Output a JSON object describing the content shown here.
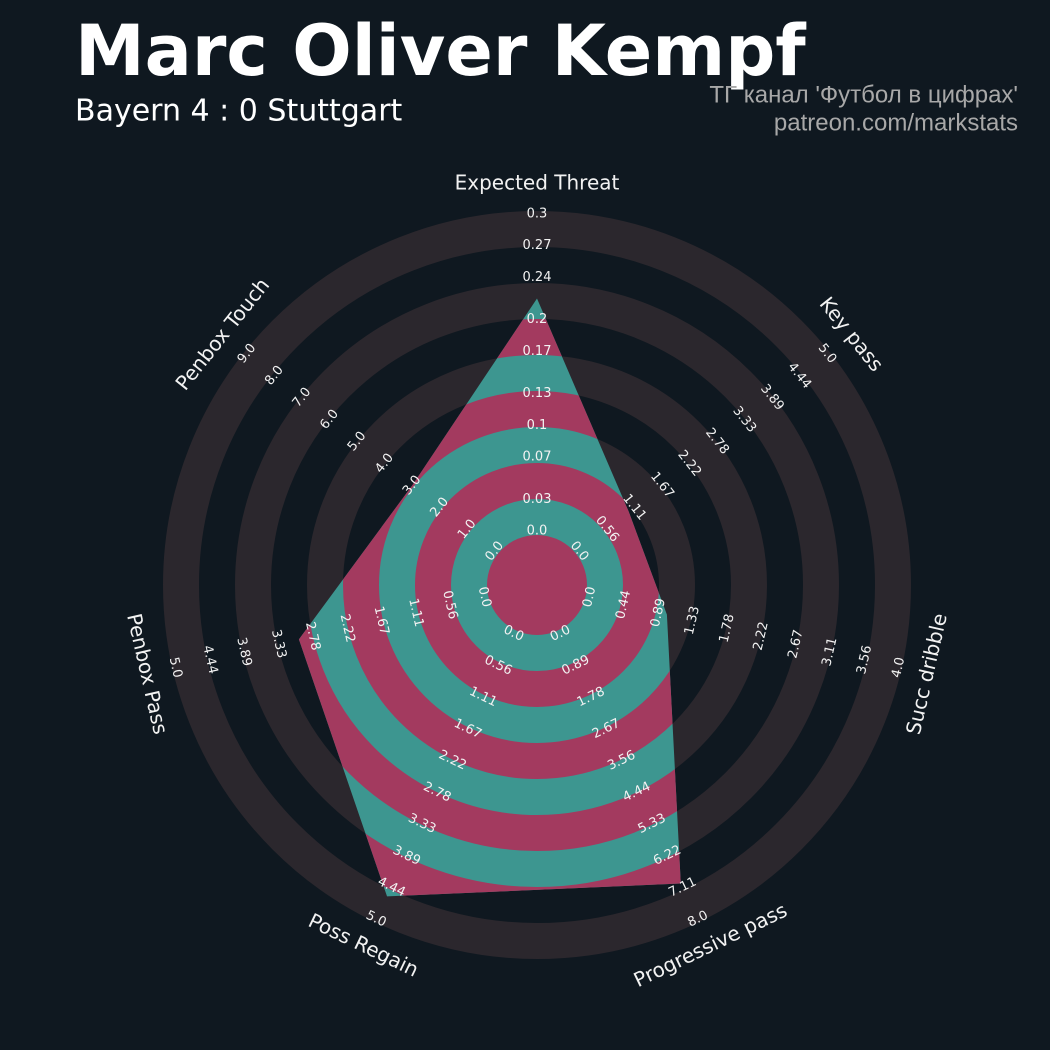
{
  "chart_data": {
    "type": "radar",
    "title": "Marc Oliver Kempf",
    "subtitle": "Bayern 4 : 0 Stuttgart",
    "annotations": [
      "ТГ канал 'Футбол в цифрах'",
      "patreon.com/markstats"
    ],
    "categories": [
      "Expected Threat",
      "Key pass",
      "Succ dribble",
      "Progressive pass",
      "Poss Regain",
      "Penbox Pass",
      "Penbox Touch"
    ],
    "values": [
      0.22,
      1.0,
      1.0,
      7.0,
      4.6,
      3.0,
      3.0
    ],
    "axis_ranges": [
      [
        0,
        0.3
      ],
      [
        0,
        5
      ],
      [
        0,
        4
      ],
      [
        0,
        8
      ],
      [
        0,
        5
      ],
      [
        0,
        5
      ],
      [
        0,
        9
      ]
    ],
    "axis_ticks": [
      [
        {
          "value": 0,
          "label": "0.0"
        },
        0.03,
        0.07,
        0.1,
        0.13,
        0.17,
        0.2,
        0.24,
        0.27,
        0.3
      ],
      [
        {
          "value": 0,
          "label": "0.0"
        },
        0.56,
        1.11,
        1.67,
        2.22,
        2.78,
        3.33,
        3.89,
        4.44,
        {
          "value": 5,
          "label": "5.0"
        }
      ],
      [
        {
          "value": 0,
          "label": "0.0"
        },
        0.44,
        0.89,
        1.33,
        1.78,
        2.22,
        2.67,
        3.11,
        3.56,
        {
          "value": 4,
          "label": "4.0"
        }
      ],
      [
        {
          "value": 0,
          "label": "0.0"
        },
        0.89,
        1.78,
        2.67,
        3.56,
        4.44,
        5.33,
        6.22,
        7.11,
        {
          "value": 8,
          "label": "8.0"
        }
      ],
      [
        {
          "value": 0,
          "label": "0.0"
        },
        0.56,
        1.11,
        1.67,
        2.22,
        2.78,
        3.33,
        3.89,
        4.44,
        {
          "value": 5,
          "label": "5.0"
        }
      ],
      [
        {
          "value": 0,
          "label": "0.0"
        },
        0.56,
        1.11,
        1.67,
        2.22,
        2.78,
        3.33,
        3.89,
        4.44,
        {
          "value": 5,
          "label": "5.0"
        }
      ],
      [
        {
          "value": 0,
          "label": "0.0"
        },
        {
          "value": 1,
          "label": "1.0"
        },
        {
          "value": 2,
          "label": "2.0"
        },
        {
          "value": 3,
          "label": "3.0"
        },
        {
          "value": 4,
          "label": "4.0"
        },
        {
          "value": 5,
          "label": "5.0"
        },
        {
          "value": 6,
          "label": "6.0"
        },
        {
          "value": 7,
          "label": "7.0"
        },
        {
          "value": 8,
          "label": "8.0"
        },
        {
          "value": 9,
          "label": "9.0"
        }
      ]
    ],
    "color": "#3d9690",
    "alt_color": "#a33a5f",
    "ring_color": "#2b272d"
  }
}
